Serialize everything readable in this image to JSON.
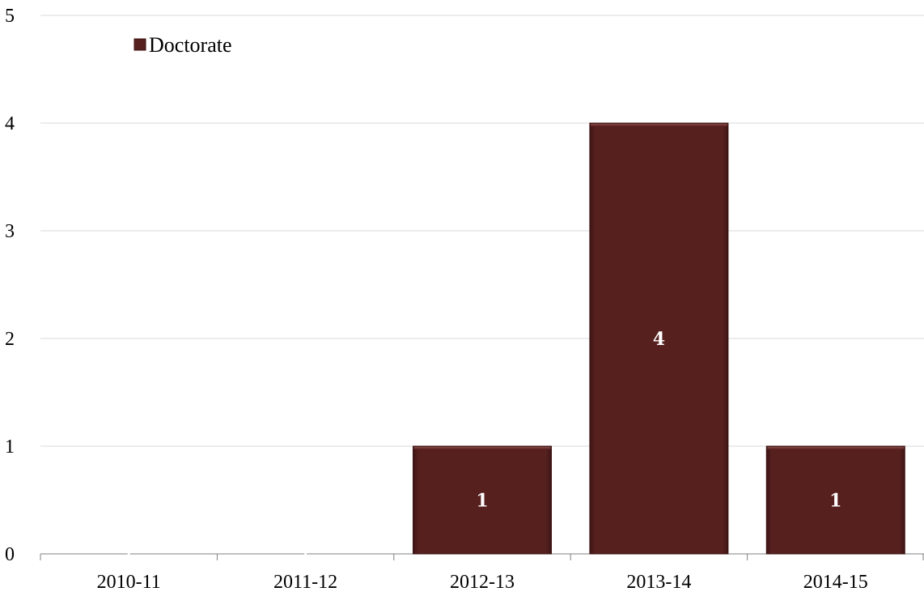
{
  "chart_data": {
    "type": "bar",
    "categories": [
      "2010-11",
      "2011-12",
      "2012-13",
      "2013-14",
      "2014-15"
    ],
    "series": [
      {
        "name": "Doctorate",
        "values": [
          0,
          0,
          1,
          4,
          1
        ],
        "color": "#56201f"
      }
    ],
    "data_labels": [
      "",
      "",
      "1",
      "4",
      "1"
    ],
    "ylim": [
      0,
      5
    ],
    "yticks": [
      "0",
      "1",
      "2",
      "3",
      "4",
      "5"
    ],
    "grid": true,
    "legend_position": "top-left",
    "title": "",
    "xlabel": "",
    "ylabel": ""
  }
}
